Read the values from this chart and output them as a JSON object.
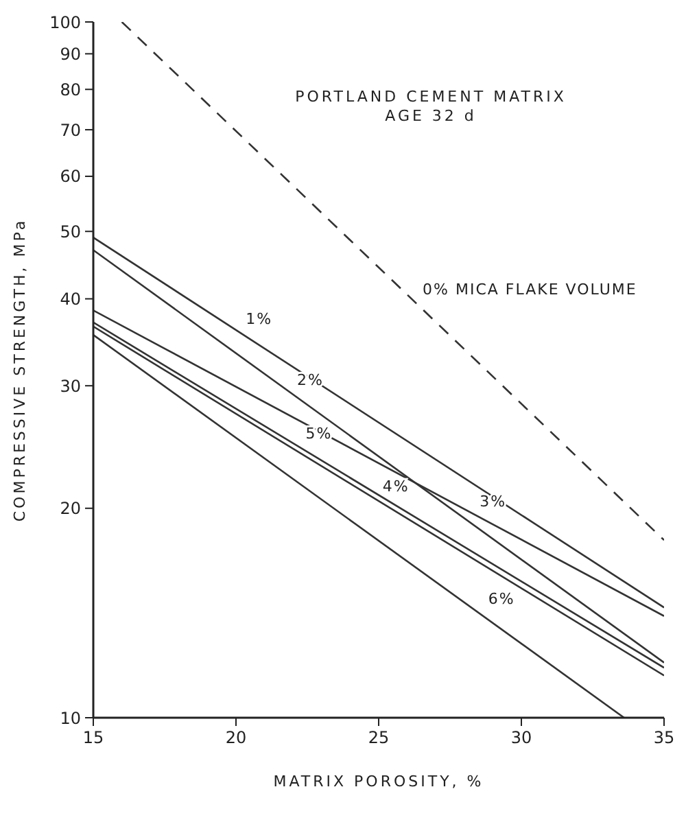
{
  "chart_data": {
    "type": "line",
    "title": "PORTLAND CEMENT MATRIX",
    "subtitle": "AGE 32 d",
    "xlabel": "MATRIX POROSITY, %",
    "ylabel": "COMPRESSIVE STRENGTH, MPa",
    "series": [
      {
        "color": "#333333",
        "line_style": "dashed",
        "x": [
          16,
          35
        ],
        "values": [
          100,
          18
        ]
      },
      {
        "color": "#333333",
        "x": [
          15,
          35
        ],
        "values": [
          49,
          14.4
        ]
      },
      {
        "color": "#333333",
        "x": [
          15,
          35
        ],
        "values": [
          47,
          12
        ]
      },
      {
        "color": "#333333",
        "x": [
          15,
          35
        ],
        "values": [
          38.5,
          14
        ]
      },
      {
        "color": "#333333",
        "x": [
          15,
          35
        ],
        "values": [
          36.5,
          11.5
        ]
      },
      {
        "color": "#333333",
        "x": [
          15,
          35
        ],
        "values": [
          37,
          11.8
        ]
      },
      {
        "color": "#333333",
        "x": [
          15,
          33.6
        ],
        "values": [
          35.5,
          10
        ]
      }
    ],
    "annotations": [
      {
        "text": "0% MICA FLAKE VOLUME",
        "x": 26.3,
        "y": 39.5
      },
      {
        "text": "1%",
        "x": 20.1,
        "y": 35.8
      },
      {
        "text": "2%",
        "x": 21.9,
        "y": 29.3
      },
      {
        "text": "3%",
        "x": 28.3,
        "y": 19.6
      },
      {
        "text": "4%",
        "x": 24.9,
        "y": 20.6
      },
      {
        "text": "5%",
        "x": 22.2,
        "y": 24.5
      },
      {
        "text": "6%",
        "x": 28.6,
        "y": 14.2
      }
    ],
    "log": "y",
    "xlim": [
      15,
      35
    ],
    "xticks": [
      15,
      20,
      25,
      30,
      35
    ],
    "ylim": [
      10,
      100
    ],
    "yticks": [
      10,
      20,
      30,
      40,
      50,
      60,
      70,
      80,
      90,
      100
    ],
    "grid": false,
    "marker": "none"
  }
}
